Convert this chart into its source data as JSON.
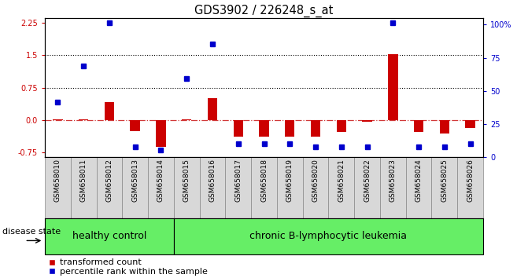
{
  "title": "GDS3902 / 226248_s_at",
  "samples": [
    "GSM658010",
    "GSM658011",
    "GSM658012",
    "GSM658013",
    "GSM658014",
    "GSM658015",
    "GSM658016",
    "GSM658017",
    "GSM658018",
    "GSM658019",
    "GSM658020",
    "GSM658021",
    "GSM658022",
    "GSM658023",
    "GSM658024",
    "GSM658025",
    "GSM658026"
  ],
  "red_values": [
    0.02,
    0.02,
    0.42,
    -0.25,
    -0.62,
    0.02,
    0.5,
    -0.38,
    -0.38,
    -0.38,
    -0.38,
    -0.28,
    -0.04,
    1.52,
    -0.28,
    -0.3,
    -0.18
  ],
  "blue_values": [
    0.42,
    1.25,
    2.25,
    -0.62,
    -0.68,
    0.95,
    1.75,
    -0.55,
    -0.55,
    -0.55,
    -0.62,
    -0.62,
    -0.62,
    2.25,
    -0.62,
    -0.62,
    -0.55
  ],
  "hline_values": [
    1.5,
    0.75
  ],
  "ylim_left": [
    -0.85,
    2.35
  ],
  "ylim_right": [
    0,
    105
  ],
  "right_ticks": [
    0,
    25,
    50,
    75,
    100
  ],
  "right_tick_labels": [
    "0",
    "25",
    "50",
    "75",
    "100%"
  ],
  "left_ticks": [
    -0.75,
    0.0,
    0.75,
    1.5,
    2.25
  ],
  "bar_color": "#cc0000",
  "dot_color": "#0000cc",
  "zero_line_color": "#cc2222",
  "group_labels": [
    "healthy control",
    "chronic B-lymphocytic leukemia"
  ],
  "healthy_count": 5,
  "total_count": 17,
  "group_bg_color": "#66ee66",
  "sample_box_color": "#d8d8d8",
  "background_color": "#ffffff",
  "title_fontsize": 10.5,
  "tick_label_fontsize": 7.0,
  "sample_label_fontsize": 6.5,
  "legend_fontsize": 8.0,
  "group_label_fontsize": 9.0,
  "disease_state_fontsize": 8.0
}
